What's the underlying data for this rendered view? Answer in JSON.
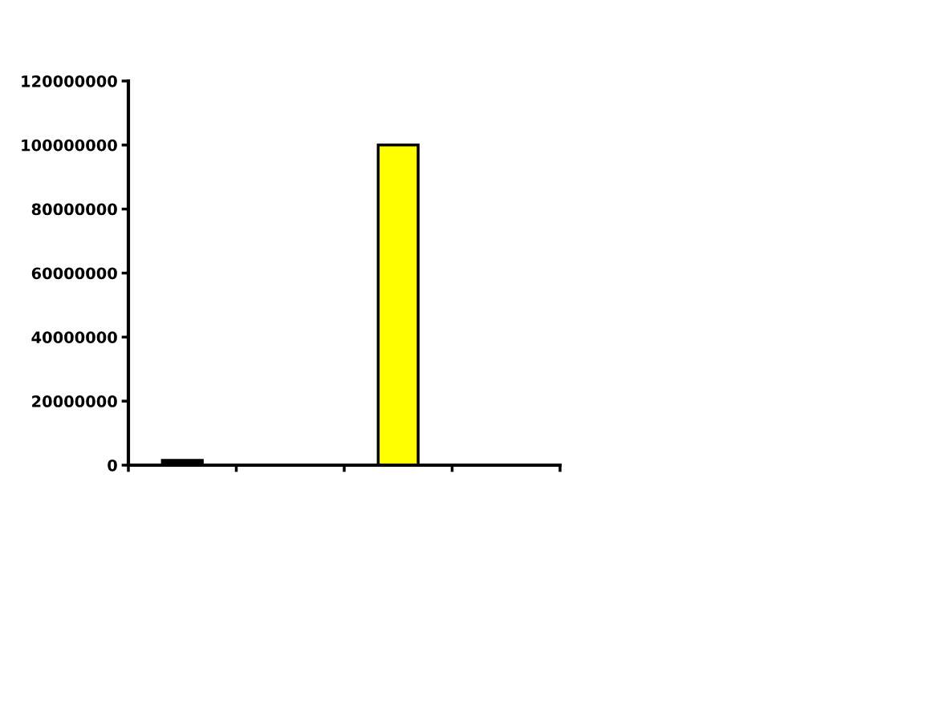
{
  "chart_data": {
    "type": "bar",
    "categories": [
      null,
      null,
      null,
      null
    ],
    "values": [
      1500000,
      0,
      100000000,
      0
    ],
    "colors": [
      "#000000",
      "#000000",
      "#ffff00",
      "#000000"
    ],
    "ylim": [
      0,
      120000000
    ],
    "yticks": [
      0,
      20000000,
      40000000,
      60000000,
      80000000,
      100000000,
      120000000
    ],
    "grid": false,
    "legend": false
  }
}
